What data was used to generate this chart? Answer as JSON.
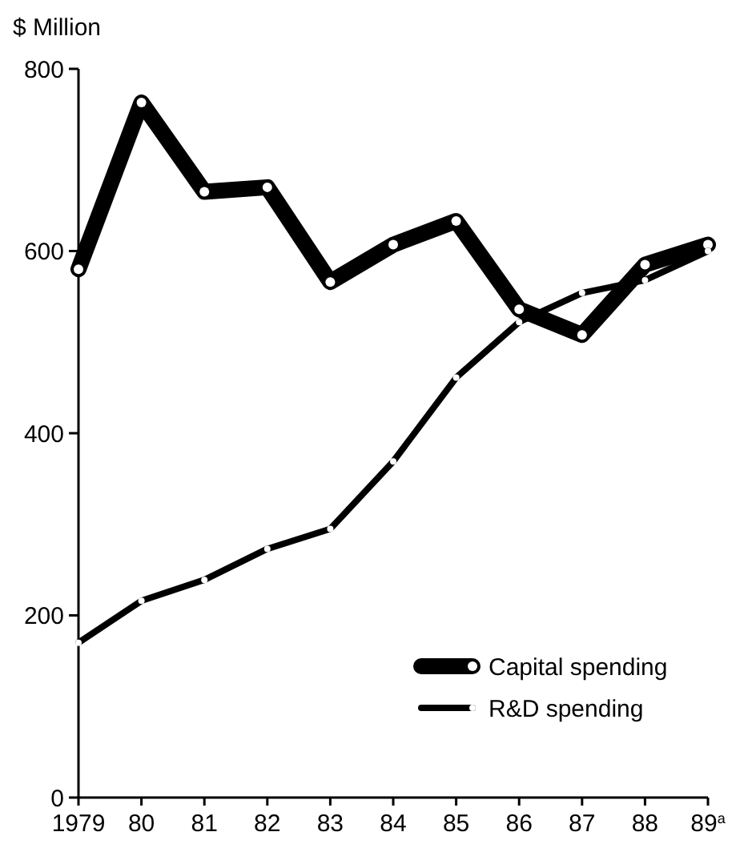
{
  "chart_data": {
    "type": "line",
    "ylabel": "$ Million",
    "categories": [
      "1979",
      "80",
      "81",
      "82",
      "83",
      "84",
      "85",
      "86",
      "87",
      "88",
      "89$^{a}$"
    ],
    "series": [
      {
        "name": "Capital spending",
        "color": "#000000",
        "values": [
          580,
          763,
          665,
          670,
          566,
          607,
          633,
          536,
          508,
          585,
          607
        ]
      },
      {
        "name": "R&D spending",
        "color": "#000000",
        "values": [
          170,
          216,
          239,
          273,
          295,
          369,
          461,
          522,
          554,
          568,
          600
        ]
      }
    ],
    "ylim": [
      0,
      800
    ],
    "yticks": [
      0,
      200,
      400,
      600,
      800
    ],
    "grid": false,
    "legend": "bottom right",
    "marker": "circle",
    "line_style": "solid"
  }
}
